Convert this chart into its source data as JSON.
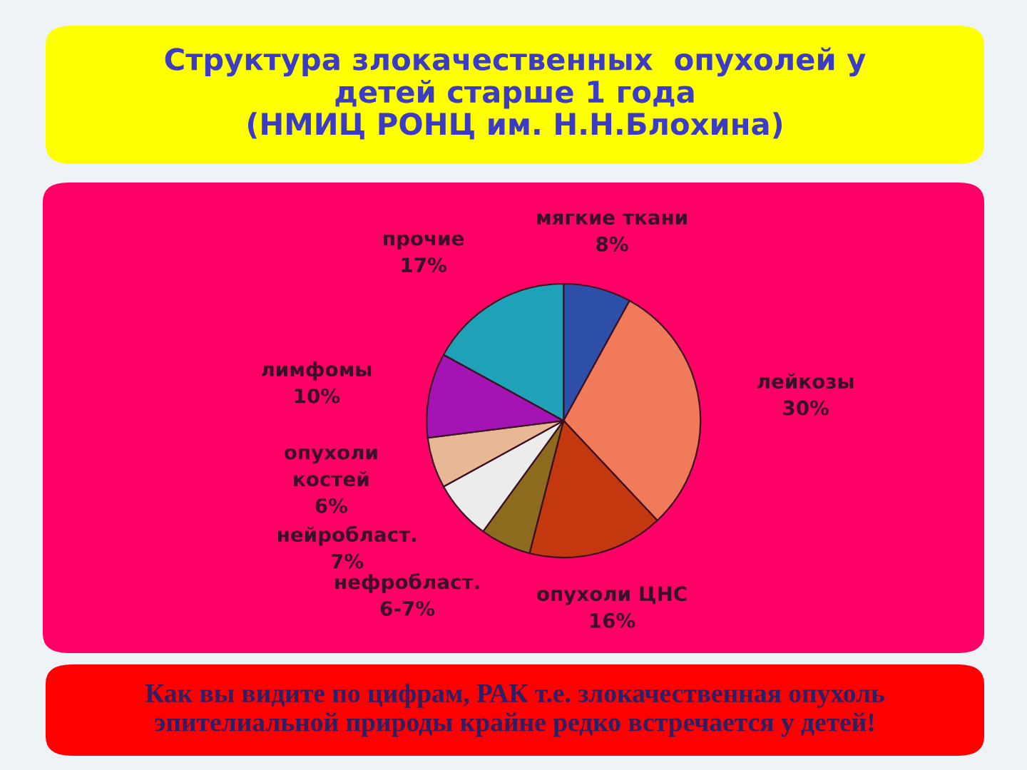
{
  "chart_data": {
    "type": "pie",
    "title": "Структура злокачественных  опухолей у\nдетей старше 1 года\n(НМИЦ РОНЦ им. Н.Н.Блохина)",
    "categories": [
      "мягкие ткани",
      "лейкозы",
      "опухоли ЦНС",
      "нефробласт.",
      "нейробласт.",
      "опухоли\nкостей",
      "лимфомы",
      "прочие"
    ],
    "values": [
      8,
      30,
      16,
      6,
      7,
      6,
      10,
      17
    ],
    "value_labels": [
      "8%",
      "30%",
      "16%",
      "6-7%",
      "7%",
      "6%",
      "10%",
      "17%"
    ],
    "colors": [
      "#2d4fa8",
      "#f07a5a",
      "#c4380f",
      "#8c6a1e",
      "#ececec",
      "#e8b896",
      "#a414b4",
      "#1fa2b8"
    ],
    "annotations": [
      "Как вы видите по цифрам, РАК т.е. злокачественная опухоль\nэпителиальной природы крайне редко встречается у детей!"
    ]
  }
}
